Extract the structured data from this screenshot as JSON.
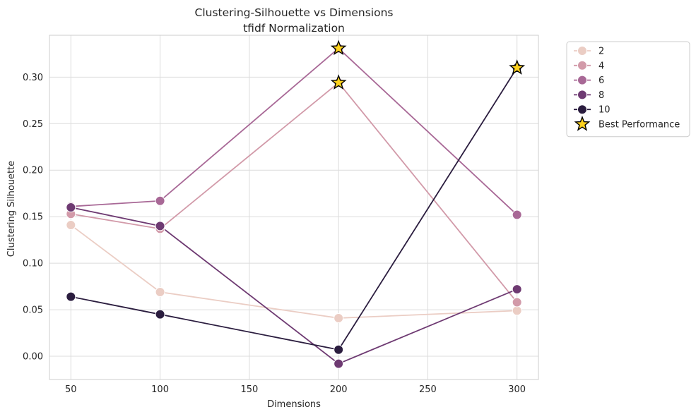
{
  "chart_data": {
    "type": "line",
    "title": "Clustering-Silhouette vs Dimensions",
    "subtitle": "tfidf Normalization",
    "xlabel": "Dimensions",
    "ylabel": "Clustering Silhouette",
    "xlim": [
      38,
      312
    ],
    "ylim": [
      -0.025,
      0.345
    ],
    "x_ticks": [
      50,
      100,
      150,
      200,
      250,
      300
    ],
    "y_ticks": [
      0.0,
      0.05,
      0.1,
      0.15,
      0.2,
      0.25,
      0.3
    ],
    "y_tick_labels": [
      "0.00",
      "0.05",
      "0.10",
      "0.15",
      "0.20",
      "0.25",
      "0.30"
    ],
    "grid": true,
    "legend_position": "outside-top-right",
    "x": [
      50,
      100,
      200,
      300
    ],
    "series": [
      {
        "name": "2",
        "color": "#ebcdc4",
        "values": [
          0.141,
          0.069,
          0.041,
          0.049
        ]
      },
      {
        "name": "4",
        "color": "#d29aa9",
        "values": [
          0.153,
          0.137,
          0.294,
          0.058
        ]
      },
      {
        "name": "6",
        "color": "#a86896",
        "values": [
          0.161,
          0.167,
          0.331,
          0.152
        ]
      },
      {
        "name": "8",
        "color": "#6e3a72",
        "values": [
          0.16,
          0.14,
          -0.008,
          0.072
        ]
      },
      {
        "name": "10",
        "color": "#2b1d3f",
        "values": [
          0.064,
          0.045,
          0.007,
          0.31
        ]
      }
    ],
    "best_performance": {
      "label": "Best Performance",
      "color": "#ffd21f",
      "points": [
        {
          "x": 200,
          "y": 0.331
        },
        {
          "x": 200,
          "y": 0.294
        },
        {
          "x": 300,
          "y": 0.31
        }
      ]
    }
  }
}
